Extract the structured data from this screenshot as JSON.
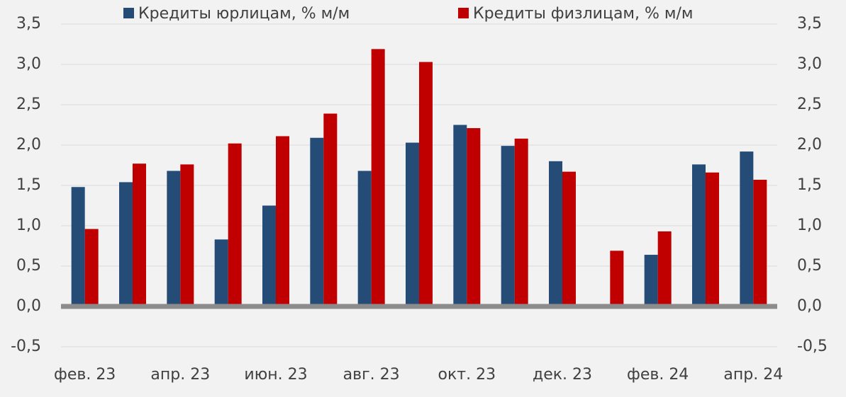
{
  "chart_data": {
    "type": "bar",
    "categories": [
      "фев. 23",
      null,
      "апр. 23",
      null,
      "июн. 23",
      null,
      "авг. 23",
      null,
      "окт. 23",
      null,
      "дек. 23",
      null,
      "фев. 24",
      null,
      "апр. 24"
    ],
    "series": [
      {
        "name": "Кредиты юрлицам, % м/м",
        "color": "#244c77",
        "values": [
          1.48,
          1.54,
          1.68,
          0.83,
          1.25,
          2.09,
          1.68,
          2.03,
          2.25,
          1.99,
          1.8,
          0,
          0.64,
          1.76,
          1.92
        ]
      },
      {
        "name": "Кредиты физлицам, % м/м",
        "color": "#c00000",
        "values": [
          0.96,
          1.77,
          1.76,
          2.02,
          2.11,
          2.39,
          3.19,
          3.03,
          2.21,
          2.08,
          1.67,
          0.69,
          0.93,
          1.66,
          1.57
        ]
      }
    ],
    "ylim": [
      -0.5,
      3.5
    ],
    "yticks": [
      {
        "value": -0.5,
        "label": "-0,5"
      },
      {
        "value": 0,
        "label": "0,0"
      },
      {
        "value": 0.5,
        "label": "0,5"
      },
      {
        "value": 1,
        "label": "1,0"
      },
      {
        "value": 1.5,
        "label": "1,5"
      },
      {
        "value": 2,
        "label": "2,0"
      },
      {
        "value": 2.5,
        "label": "2,5"
      },
      {
        "value": 3,
        "label": "3,0"
      },
      {
        "value": 3.5,
        "label": "3,5"
      }
    ],
    "y2lim": [
      -0.5,
      3.5
    ],
    "y2ticks": [
      {
        "value": -0.5,
        "label": "-0,5"
      },
      {
        "value": 0,
        "label": "0,0"
      },
      {
        "value": 0.5,
        "label": "0,5"
      },
      {
        "value": 1,
        "label": "1,0"
      },
      {
        "value": 1.5,
        "label": "1,5"
      },
      {
        "value": 2,
        "label": "2,0"
      },
      {
        "value": 2.5,
        "label": "2,5"
      },
      {
        "value": 3,
        "label": "3,0"
      },
      {
        "value": 3.5,
        "label": "3,5"
      }
    ],
    "grid": true
  }
}
